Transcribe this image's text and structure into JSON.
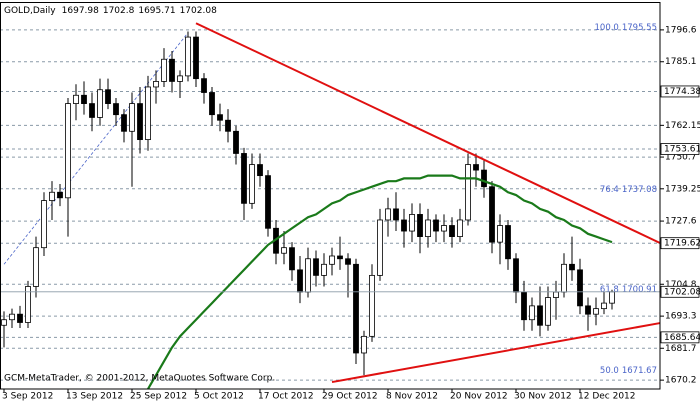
{
  "chart_data": {
    "type": "candlestick",
    "title": "GOLD,Daily",
    "footer": "GCM-MetaTrader, © 2001-2012, MetaQuotes Software Corp.",
    "categories": [
      "3 Sep 2012",
      null,
      null,
      null,
      null,
      null,
      null,
      null,
      "13 Sep 2012",
      null,
      null,
      null,
      null,
      null,
      null,
      null,
      "25 Sep 2012",
      null,
      null,
      null,
      null,
      null,
      null,
      null,
      "5 Oct 2012",
      null,
      null,
      null,
      null,
      null,
      null,
      null,
      "17 Oct 2012",
      null,
      null,
      null,
      null,
      null,
      null,
      null,
      "29 Oct 2012",
      null,
      null,
      null,
      null,
      null,
      null,
      null,
      "8 Nov 2012",
      null,
      null,
      null,
      null,
      null,
      null,
      null,
      "20 Nov 2012",
      null,
      null,
      null,
      null,
      null,
      null,
      null,
      "30 Nov 2012",
      null,
      null,
      null,
      null,
      null,
      null,
      null,
      "12 Dec 2012",
      null,
      null,
      null,
      null
    ],
    "open": [
      1690,
      1692,
      1694,
      1691,
      1704,
      1718,
      1735,
      1738,
      1736,
      1770,
      1773,
      1770,
      1765,
      1775,
      1770,
      1766,
      1760,
      1770,
      1757,
      1776,
      1778,
      1786,
      1778,
      1780,
      1794,
      1779,
      1774,
      1766,
      1764,
      1760,
      1752,
      1734,
      1748,
      1744,
      1725,
      1716,
      1718,
      1710,
      1702,
      1714,
      1708,
      1712,
      1715,
      1714,
      1712,
      1680,
      1686,
      1708,
      1728,
      1732,
      1728,
      1724,
      1730,
      1722,
      1728,
      1724,
      1726,
      1722,
      1728,
      1748,
      1746,
      1740,
      1720,
      1726,
      1714,
      1702,
      1692,
      1697,
      1690,
      1700,
      1702,
      1712,
      1710,
      1697,
      1694,
      1696,
      1697.98
    ],
    "high": [
      1695,
      1696,
      1697,
      1706,
      1722,
      1738,
      1742,
      1741,
      1772,
      1777,
      1778,
      1774,
      1779,
      1779,
      1772,
      1768,
      1774,
      1776,
      1780,
      1782,
      1790,
      1789,
      1782,
      1796,
      1796,
      1781,
      1776,
      1770,
      1768,
      1762,
      1754,
      1752,
      1752,
      1746,
      1728,
      1724,
      1720,
      1715,
      1718,
      1717,
      1716,
      1718,
      1722,
      1716,
      1714,
      1688,
      1712,
      1732,
      1736,
      1738,
      1732,
      1734,
      1734,
      1732,
      1730,
      1730,
      1729,
      1732,
      1752,
      1752,
      1750,
      1742,
      1730,
      1728,
      1716,
      1706,
      1700,
      1704,
      1704,
      1706,
      1716,
      1722,
      1714,
      1700,
      1700,
      1702,
      1702.8
    ],
    "low": [
      1682,
      1689,
      1689,
      1689,
      1700,
      1715,
      1728,
      1733,
      1722,
      1764,
      1766,
      1760,
      1762,
      1768,
      1762,
      1756,
      1740,
      1752,
      1753,
      1770,
      1776,
      1774,
      1772,
      1778,
      1776,
      1770,
      1762,
      1760,
      1756,
      1748,
      1728,
      1732,
      1740,
      1722,
      1712,
      1712,
      1706,
      1698,
      1700,
      1704,
      1704,
      1708,
      1710,
      1700,
      1676,
      1672,
      1684,
      1706,
      1722,
      1724,
      1718,
      1720,
      1716,
      1718,
      1720,
      1720,
      1718,
      1720,
      1726,
      1740,
      1736,
      1716,
      1712,
      1710,
      1698,
      1688,
      1688,
      1686,
      1688,
      1692,
      1700,
      1706,
      1694,
      1688,
      1690,
      1694,
      1695.71
    ],
    "close": [
      1692,
      1694,
      1691,
      1704,
      1718,
      1735,
      1738,
      1736,
      1770,
      1773,
      1770,
      1765,
      1775,
      1770,
      1766,
      1760,
      1770,
      1757,
      1776,
      1778,
      1786,
      1778,
      1780,
      1794,
      1779,
      1774,
      1766,
      1764,
      1760,
      1752,
      1734,
      1748,
      1744,
      1725,
      1716,
      1718,
      1710,
      1702,
      1714,
      1708,
      1712,
      1715,
      1714,
      1712,
      1680,
      1686,
      1708,
      1728,
      1732,
      1728,
      1724,
      1730,
      1722,
      1728,
      1724,
      1726,
      1722,
      1728,
      1748,
      1746,
      1740,
      1720,
      1726,
      1714,
      1702,
      1692,
      1697,
      1690,
      1700,
      1702,
      1712,
      1710,
      1697,
      1694,
      1696,
      1698,
      1702.08
    ],
    "ma": {
      "color": "#1a7a1a",
      "values": [
        null,
        null,
        null,
        null,
        null,
        null,
        null,
        null,
        null,
        null,
        null,
        null,
        null,
        null,
        null,
        null,
        null,
        null,
        1667,
        1672,
        1677,
        1682,
        1686,
        1689,
        1692,
        1695,
        1698,
        1701,
        1704,
        1707,
        1710,
        1713,
        1716,
        1719,
        1721,
        1723,
        1725,
        1727,
        1729,
        1730,
        1732,
        1734,
        1735,
        1737,
        1738,
        1739,
        1740,
        1741,
        1742,
        1742,
        1743,
        1743,
        1743,
        1744,
        1744,
        1744,
        1744,
        1743,
        1743,
        1743,
        1742,
        1741,
        1740,
        1738,
        1737,
        1735,
        1734,
        1732,
        1731,
        1729,
        1728,
        1726,
        1725,
        1723,
        1722,
        1721,
        1720
      ]
    },
    "trendlines": [
      {
        "color": "#e01010",
        "points": [
          [
            24,
            1799
          ],
          [
            82,
            1719.7
          ]
        ]
      },
      {
        "color": "#e01010",
        "points": [
          [
            41,
            1669.5
          ],
          [
            82,
            1690.8
          ]
        ]
      }
    ],
    "fib_line": {
      "color": "#4a64c8",
      "points": [
        [
          0,
          1712
        ],
        [
          23,
          1795.55
        ]
      ]
    },
    "fib_levels": [
      {
        "ratio": "100.0",
        "price": 1795.55
      },
      {
        "ratio": "76.4",
        "price": 1737.08
      },
      {
        "ratio": "61.8",
        "price": 1700.91
      },
      {
        "ratio": "50.0",
        "price": 1671.67
      }
    ],
    "levels": [
      1774.38,
      1753.61,
      1719.62,
      1685.64
    ],
    "ylim": [
      1667,
      1806.3
    ],
    "yticks": [
      1796.6,
      1785.1,
      1762.15,
      1750.7,
      1739.25,
      1727.6,
      1704.8,
      1693.3,
      1681.7,
      1670.2
    ],
    "grid": true,
    "up_color": "#ffffff",
    "down_color": "#000000"
  }
}
